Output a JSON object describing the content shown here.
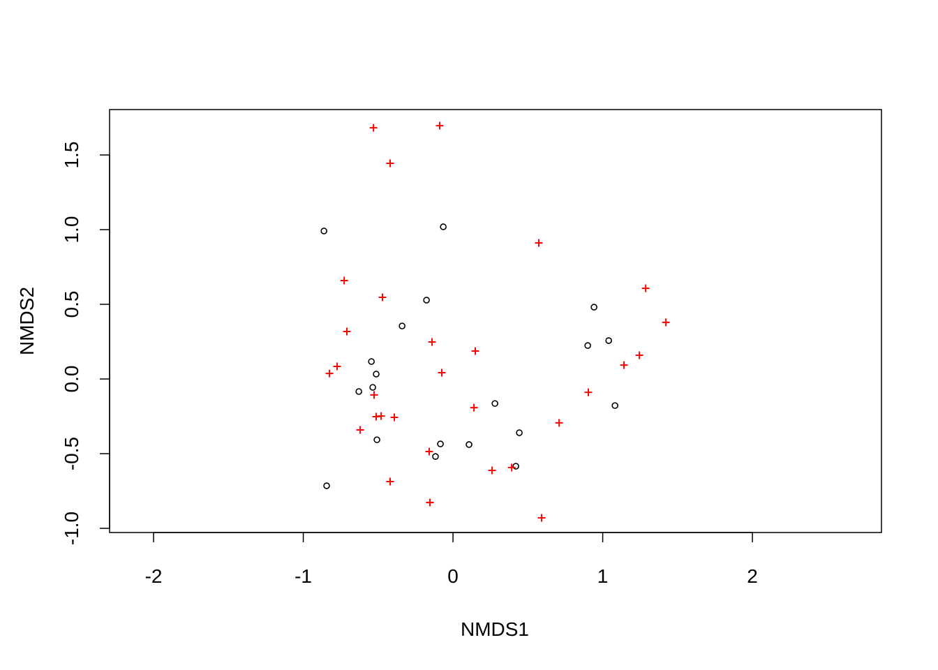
{
  "chart_data": {
    "type": "scatter",
    "x_label": "NMDS1",
    "y_label": "NMDS2",
    "xlim": [
      -2.294,
      2.862
    ],
    "ylim": [
      -1.028,
      1.804
    ],
    "xticks": [
      -2,
      -1,
      0,
      1,
      2
    ],
    "yticks": [
      {
        "value": -1,
        "label": "-1.0"
      },
      -0.5,
      {
        "value": 0,
        "label": "0.0"
      },
      0.5,
      {
        "value": 1,
        "label": "1.0"
      },
      1.5
    ],
    "grid": false,
    "series": [
      {
        "color": "#000000",
        "marker": "circle",
        "x": [
          -0.862,
          -0.065,
          -0.177,
          -0.34,
          0.942,
          0.9,
          1.04,
          -0.545,
          -0.513,
          -0.536,
          -0.629,
          0.28,
          1.082,
          -0.508,
          -0.084,
          0.107,
          0.443,
          -0.117,
          0.42,
          -0.844
        ],
        "values": [
          0.991,
          1.019,
          0.528,
          0.355,
          0.481,
          0.224,
          0.257,
          0.117,
          0.033,
          -0.056,
          -0.084,
          -0.164,
          -0.178,
          -0.407,
          -0.435,
          -0.439,
          -0.36,
          -0.519,
          -0.584,
          -0.715
        ]
      },
      {
        "color": "#ff0000",
        "marker": "plus",
        "x": [
          -0.531,
          -0.089,
          -0.42,
          0.573,
          -0.727,
          -0.471,
          1.287,
          1.422,
          -0.709,
          -0.14,
          0.149,
          1.245,
          1.142,
          -0.774,
          -0.825,
          -0.075,
          -0.527,
          0.904,
          0.14,
          -0.513,
          -0.48,
          -0.392,
          0.709,
          -0.62,
          -0.159,
          0.261,
          0.392,
          -0.42,
          -0.154,
          0.592
        ],
        "values": [
          1.682,
          1.696,
          1.444,
          0.911,
          0.659,
          0.547,
          0.607,
          0.379,
          0.318,
          0.248,
          0.187,
          0.159,
          0.093,
          0.084,
          0.037,
          0.042,
          -0.107,
          -0.089,
          -0.192,
          -0.252,
          -0.248,
          -0.257,
          -0.294,
          -0.341,
          -0.486,
          -0.612,
          -0.593,
          -0.687,
          -0.827,
          -0.93
        ]
      }
    ]
  }
}
